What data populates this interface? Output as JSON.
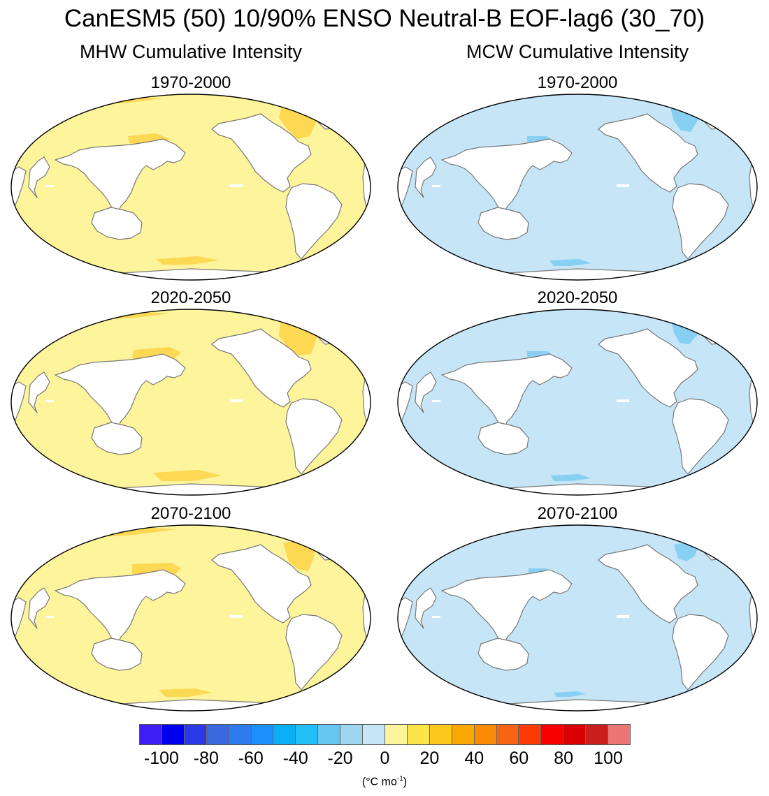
{
  "figure": {
    "title": "CanESM5 (50) 10/90% ENSO Neutral-B EOF-lag6 (30_70)",
    "column_titles": [
      "MHW Cumulative Intensity",
      "MCW Cumulative Intensity"
    ]
  },
  "chart_data": {
    "type": "heatmap",
    "projection": "Robinson, Pacific-centered",
    "panels": [
      {
        "column": "MHW Cumulative Intensity",
        "period": "1970-2000",
        "ocean_color": "#fdf49b",
        "highlight_color": "#fbd247"
      },
      {
        "column": "MCW Cumulative Intensity",
        "period": "1970-2000",
        "ocean_color": "#c6e6f7",
        "highlight_color": "#7ccaf3"
      },
      {
        "column": "MHW Cumulative Intensity",
        "period": "2020-2050",
        "ocean_color": "#fdf49b",
        "highlight_color": "#fbd247"
      },
      {
        "column": "MCW Cumulative Intensity",
        "period": "2020-2050",
        "ocean_color": "#c6e6f7",
        "highlight_color": "#7ccaf3"
      },
      {
        "column": "MHW Cumulative Intensity",
        "period": "2070-2100",
        "ocean_color": "#fdf49b",
        "highlight_color": "#fbd247"
      },
      {
        "column": "MCW Cumulative Intensity",
        "period": "2070-2100",
        "ocean_color": "#c6e6f7",
        "highlight_color": "#7ccaf3"
      }
    ],
    "colorbar": {
      "min": -110,
      "max": 110,
      "interval": 10,
      "colors": [
        "#3e1ef5",
        "#0000f0",
        "#2b3ae6",
        "#3a68e0",
        "#2e7bee",
        "#1b90fb",
        "#0aaff6",
        "#22c0f6",
        "#65c8f1",
        "#9ed6f2",
        "#c6e6f7",
        "#fdf49b",
        "#fde447",
        "#fcc81c",
        "#fba800",
        "#fb8a05",
        "#f86414",
        "#fc3a03",
        "#f80000",
        "#d80000",
        "#c81e1e",
        "#ec7676"
      ],
      "tick_labels": [
        "-100",
        "-80",
        "-60",
        "-40",
        "-20",
        "0",
        "20",
        "40",
        "60",
        "80",
        "100"
      ],
      "units": "(°C mo",
      "units_exponent": "-1",
      "units_close": ")"
    }
  }
}
